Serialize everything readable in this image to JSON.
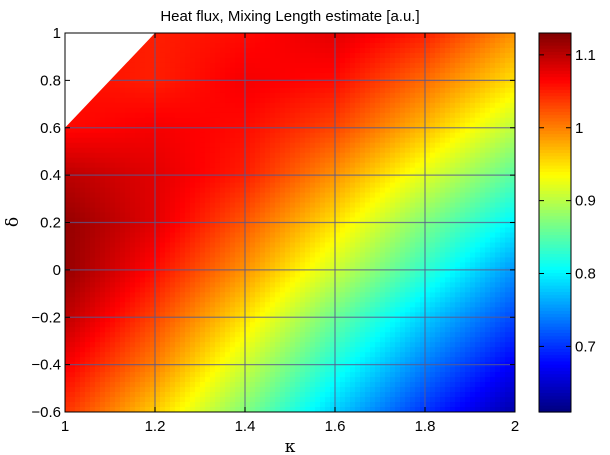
{
  "chart_data": {
    "type": "heatmap",
    "title": "Heat flux, Mixing Length estimate [a.u.]",
    "xlabel": "κ",
    "ylabel": "δ",
    "xlim": [
      1,
      2
    ],
    "ylim": [
      -0.6,
      1
    ],
    "x_ticks": [
      1,
      1.2,
      1.4,
      1.6,
      1.8,
      2
    ],
    "x_tick_labels": [
      "1",
      "1.2",
      "1.4",
      "1.6",
      "1.8",
      "2"
    ],
    "y_ticks": [
      -0.6,
      -0.4,
      -0.2,
      0,
      0.2,
      0.4,
      0.6,
      0.8,
      1
    ],
    "y_tick_labels": [
      "−0.6",
      "−0.4",
      "−0.2",
      "0",
      "0.2",
      "0.4",
      "0.6",
      "0.8",
      "1"
    ],
    "kappa": [
      1.0,
      1.2,
      1.4,
      1.6,
      1.8,
      2.0
    ],
    "delta": [
      -0.6,
      -0.4,
      -0.2,
      0.0,
      0.2,
      0.4,
      0.6,
      0.8,
      1.0
    ],
    "values": [
      [
        1.04,
        0.96,
        0.87,
        0.78,
        0.7,
        0.63
      ],
      [
        1.07,
        1.0,
        0.91,
        0.82,
        0.74,
        0.67
      ],
      [
        1.1,
        1.03,
        0.95,
        0.86,
        0.78,
        0.71
      ],
      [
        1.12,
        1.06,
        0.99,
        0.91,
        0.83,
        0.75
      ],
      [
        1.12,
        1.08,
        1.02,
        0.95,
        0.87,
        0.8
      ],
      [
        1.1,
        1.08,
        1.05,
        0.99,
        0.92,
        0.85
      ],
      [
        1.06,
        1.07,
        1.06,
        1.03,
        0.97,
        0.9
      ],
      [
        null,
        1.05,
        1.07,
        1.06,
        1.01,
        0.95
      ],
      [
        null,
        null,
        1.06,
        1.08,
        1.05,
        0.99
      ]
    ],
    "invalid_region": "delta > 0.6 + 2*(kappa - 1)",
    "colorbar": {
      "range": [
        0.61,
        1.13
      ],
      "ticks": [
        0.7,
        0.8,
        0.9,
        1,
        1.1
      ],
      "tick_labels": [
        "0.7",
        "0.8",
        "0.9",
        "1",
        "1.1"
      ],
      "colormap": "jet"
    },
    "grid": true
  }
}
